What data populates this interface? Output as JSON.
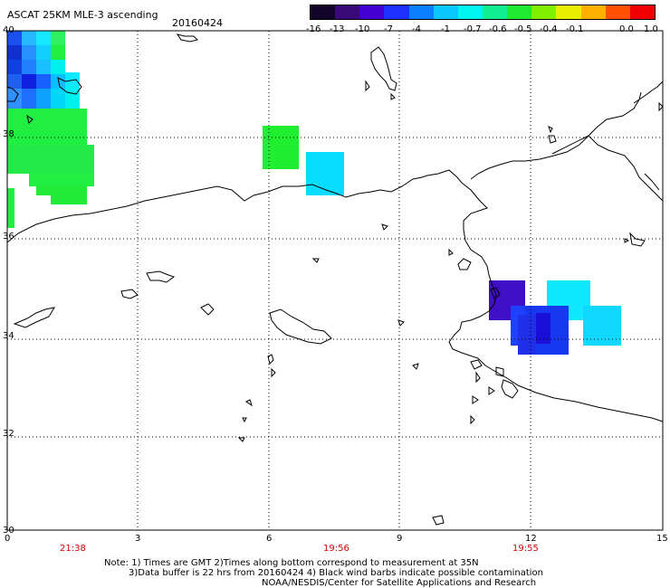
{
  "header": {
    "title": "ASCAT 25KM MLE-3 ascending",
    "date": "20160424"
  },
  "colorbar": {
    "labels": [
      "-16",
      "-13",
      "-10",
      "-7",
      "-4",
      "-1",
      "-0.7",
      "-0.6",
      "-0.5",
      "-0.4",
      "-0.1",
      "0.0",
      "1.0"
    ],
    "colors": [
      "#000000",
      "#3a0a52",
      "#4a00b4",
      "#2a1cff",
      "#0a6cff",
      "#08b8ff",
      "#00eef0",
      "#10f0a0",
      "#20e830",
      "#a0f000",
      "#f0f000",
      "#ffb000",
      "#ff5000",
      "#f00000"
    ]
  },
  "axes": {
    "x_ticks": [
      "0",
      "3",
      "6",
      "9",
      "12",
      "15"
    ],
    "y_ticks": [
      "40",
      "38",
      "36",
      "34",
      "32",
      "30"
    ]
  },
  "times": [
    "21:38",
    "19:56",
    "19:55"
  ],
  "notes": [
    "Note: 1) Times are GMT 2)Times along bottom correspond to measurement at 35N",
    "3)Data buffer is 22 hrs from 20160424 4) Black wind barbs indicate possible contamination",
    "NOAA/NESDIS/Center for Satellite Applications and Research"
  ],
  "legend_colors": {
    "neg16": "#1a0a3a",
    "neg13": "#4a08b0",
    "neg10": "#1c2cff",
    "neg7": "#1878ff",
    "neg4": "#10c8ff",
    "neg1": "#00ffff",
    "neg07": "#30f8c0",
    "neg06": "#00ee33",
    "neg05": "#40f000",
    "neg04": "#a8f000",
    "neg01": "#ffff00",
    "zero": "#ff9800",
    "one": "#ff1800"
  }
}
